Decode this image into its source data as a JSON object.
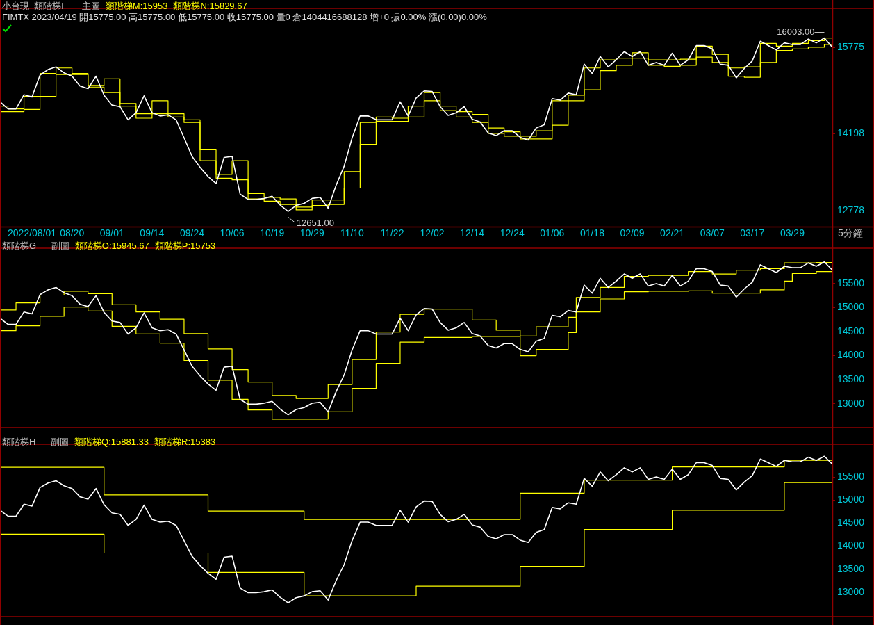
{
  "chart_data": [
    {
      "type": "line",
      "title": "小台現  類階梯F      主圖",
      "subtitle": "FIMTX 2023/04/19 開15775.00 高15775.00 低15775.00 收15775.00 量0 倉1404416688128 增+0 振0.00% 漲(0.00)0.00%",
      "xlabel": "5分鐘",
      "annotations": [
        "類階梯M:15953",
        "類階梯N:15829.67",
        "16003.00",
        "12651.00"
      ],
      "categories": [
        null,
        null,
        null,
        null,
        "2022/08/01",
        null,
        null,
        null,
        null,
        "08/20",
        null,
        null,
        null,
        null,
        "09/01",
        null,
        null,
        null,
        null,
        "09/14",
        null,
        null,
        null,
        null,
        "09/24",
        null,
        null,
        null,
        null,
        "10/06",
        null,
        null,
        null,
        null,
        "10/19",
        null,
        null,
        null,
        null,
        "10/29",
        null,
        null,
        null,
        null,
        "11/10",
        null,
        null,
        null,
        null,
        "11/22",
        null,
        null,
        null,
        null,
        "12/02",
        null,
        null,
        null,
        null,
        "12/14",
        null,
        null,
        null,
        null,
        "12/24",
        null,
        null,
        null,
        null,
        "01/06",
        null,
        null,
        null,
        null,
        "01/18",
        null,
        null,
        null,
        null,
        "02/09",
        null,
        null,
        null,
        null,
        "02/21",
        null,
        null,
        null,
        null,
        "03/07",
        null,
        null,
        null,
        null,
        "03/17",
        null,
        null,
        null,
        null,
        "03/29",
        null,
        null,
        null,
        null,
        null
      ],
      "ylim": [
        12480,
        16500
      ],
      "yticks": [
        12778,
        14198,
        15775
      ],
      "grid": false,
      "series": [
        {
          "type": "line",
          "color": "#ffffff",
          "values": [
            14780,
            14650,
            14650,
            14910,
            14870,
            15270,
            15370,
            15420,
            15310,
            15250,
            15070,
            15020,
            15250,
            14900,
            14720,
            14690,
            14450,
            14580,
            14890,
            14580,
            14520,
            14540,
            14450,
            14120,
            13780,
            13580,
            13410,
            13280,
            13760,
            13780,
            13090,
            12990,
            12990,
            13010,
            13050,
            12890,
            12770,
            12880,
            12920,
            13010,
            13030,
            12830,
            13250,
            13600,
            14120,
            14520,
            14520,
            14450,
            14450,
            14450,
            14780,
            14520,
            14850,
            14980,
            14970,
            14690,
            14530,
            14580,
            14690,
            14460,
            14410,
            14210,
            14160,
            14250,
            14250,
            14130,
            14080,
            14300,
            14360,
            14840,
            14810,
            14940,
            14910,
            15470,
            15300,
            15610,
            15420,
            15550,
            15700,
            15610,
            15700,
            15450,
            15500,
            15450,
            15670,
            15450,
            15550,
            15810,
            15810,
            15750,
            15470,
            15450,
            15220,
            15390,
            15530,
            15890,
            15810,
            15730,
            15860,
            15830,
            15830,
            15930,
            15860,
            15950,
            15780
          ]
        },
        {
          "type": "step",
          "color": "#ffff00",
          "values": [
            14700,
            14700,
            14650,
            14650,
            14880,
            14880,
            15300,
            15300,
            15400,
            15400,
            15280,
            15280,
            15080,
            15080,
            15200,
            15200,
            14750,
            14750,
            14560,
            14560,
            14800,
            14800,
            14560,
            14560,
            14450,
            14450,
            13900,
            13900,
            13450,
            13450,
            13700,
            13700,
            13100,
            13100,
            13030,
            13030,
            13000,
            13000,
            12850,
            12850,
            12980,
            12980,
            12980,
            12980,
            13500,
            13500,
            14400,
            14400,
            14500,
            14500,
            14480,
            14480,
            14700,
            14700,
            14950,
            14950,
            14700,
            14700,
            14600,
            14600,
            14550,
            14550,
            14300,
            14300,
            14230,
            14230,
            14150,
            14150,
            14250,
            14250,
            14800,
            14800,
            14900,
            14900,
            15400,
            15400,
            15550,
            15550,
            15580,
            15580,
            15680,
            15680,
            15550,
            15550,
            15550,
            15550,
            15560,
            15560,
            15800,
            15800,
            15650,
            15650,
            15400,
            15400,
            15420,
            15420,
            15850,
            15850,
            15800,
            15800,
            15850,
            15850,
            15900,
            15900,
            15950
          ]
        },
        {
          "type": "step",
          "color": "#ffff00",
          "values": [
            14600,
            14600,
            14600,
            14600,
            14640,
            14640,
            14880,
            14880,
            15280,
            15280,
            15300,
            15300,
            15050,
            15050,
            14950,
            14950,
            14700,
            14700,
            14480,
            14480,
            14560,
            14560,
            14500,
            14500,
            14400,
            14400,
            13700,
            13700,
            13380,
            13380,
            13350,
            13350,
            13000,
            13000,
            12960,
            12960,
            12900,
            12900,
            12800,
            12800,
            12880,
            12880,
            12900,
            12900,
            13200,
            13200,
            14000,
            14000,
            14420,
            14420,
            14420,
            14420,
            14500,
            14500,
            14800,
            14800,
            14620,
            14620,
            14500,
            14500,
            14400,
            14400,
            14200,
            14200,
            14150,
            14150,
            14100,
            14100,
            14100,
            14100,
            14350,
            14350,
            14800,
            14800,
            15000,
            15000,
            15350,
            15350,
            15450,
            15450,
            15580,
            15580,
            15450,
            15450,
            15430,
            15430,
            15450,
            15450,
            15600,
            15600,
            15500,
            15500,
            15250,
            15250,
            15230,
            15230,
            15500,
            15500,
            15720,
            15720,
            15750,
            15750,
            15780,
            15780,
            15830
          ]
        }
      ]
    },
    {
      "type": "line",
      "title": "類階梯G      副圖",
      "annotations": [
        "類階梯O:15945.67",
        "類階梯P:15753"
      ],
      "categories": [
        null,
        null,
        null,
        null,
        null,
        null,
        null,
        null,
        null,
        null,
        null,
        null,
        null,
        null,
        null,
        null,
        null,
        null,
        null,
        null,
        null,
        null,
        null,
        null,
        null,
        null,
        null,
        null,
        null,
        null,
        null,
        null,
        null,
        null,
        null,
        null,
        null,
        null,
        null,
        null,
        null,
        null,
        null,
        null,
        null,
        null,
        null,
        null,
        null,
        null,
        null,
        null,
        null,
        null,
        null,
        null,
        null,
        null,
        null,
        null,
        null,
        null,
        null,
        null,
        null,
        null,
        null,
        null,
        null,
        null,
        null,
        null,
        null,
        null,
        null,
        null,
        null,
        null,
        null,
        null,
        null,
        null,
        null,
        null,
        null,
        null,
        null,
        null,
        null,
        null,
        null,
        null,
        null,
        null,
        null,
        null,
        null,
        null,
        null,
        null,
        null,
        null,
        null,
        null,
        null
      ],
      "tick_labels": "y",
      "ylim": [
        12495,
        16245
      ],
      "yticks": [
        13000,
        13500,
        14000,
        14500,
        15000,
        15500
      ],
      "grid": false,
      "series": [
        {
          "type": "line",
          "color": "#ffffff",
          "values": [
            14780,
            14650,
            14650,
            14910,
            14870,
            15270,
            15370,
            15420,
            15310,
            15250,
            15070,
            15020,
            15250,
            14900,
            14720,
            14690,
            14450,
            14580,
            14890,
            14580,
            14520,
            14540,
            14450,
            14120,
            13780,
            13580,
            13410,
            13280,
            13760,
            13780,
            13090,
            12990,
            12990,
            13010,
            13050,
            12890,
            12770,
            12880,
            12920,
            13010,
            13030,
            12830,
            13250,
            13600,
            14120,
            14520,
            14520,
            14450,
            14450,
            14450,
            14780,
            14520,
            14850,
            14980,
            14970,
            14690,
            14530,
            14580,
            14690,
            14460,
            14410,
            14210,
            14160,
            14250,
            14250,
            14130,
            14080,
            14300,
            14360,
            14840,
            14810,
            14940,
            14910,
            15470,
            15300,
            15610,
            15420,
            15550,
            15700,
            15610,
            15700,
            15450,
            15500,
            15450,
            15670,
            15450,
            15550,
            15810,
            15810,
            15750,
            15470,
            15450,
            15220,
            15390,
            15530,
            15890,
            15810,
            15730,
            15860,
            15830,
            15830,
            15930,
            15860,
            15950,
            15780
          ]
        },
        {
          "type": "step",
          "color": "#ffff00",
          "values": [
            14950,
            14950,
            14950,
            15100,
            15100,
            15100,
            15260,
            15260,
            15260,
            15340,
            15340,
            15340,
            15290,
            15290,
            15290,
            15060,
            15060,
            15060,
            14910,
            14910,
            14910,
            14760,
            14760,
            14760,
            14460,
            14460,
            14460,
            14140,
            14140,
            14140,
            13710,
            13710,
            13450,
            13450,
            13450,
            13170,
            13170,
            13170,
            13110,
            13110,
            13110,
            13110,
            13400,
            13400,
            13400,
            13920,
            13920,
            13920,
            14490,
            14490,
            14490,
            14860,
            14860,
            14860,
            14970,
            14970,
            14970,
            14970,
            14970,
            14970,
            14740,
            14740,
            14740,
            14530,
            14530,
            14530,
            14410,
            14410,
            14600,
            14600,
            14600,
            14600,
            14800,
            15210,
            15210,
            15210,
            15420,
            15420,
            15420,
            15650,
            15650,
            15650,
            15670,
            15670,
            15670,
            15670,
            15670,
            15750,
            15750,
            15750,
            15700,
            15700,
            15700,
            15780,
            15780,
            15780,
            15810,
            15810,
            15810,
            15930,
            15930,
            15930,
            15930,
            15940,
            15940
          ]
        },
        {
          "type": "step",
          "color": "#ffff00",
          "values": [
            14520,
            14520,
            14520,
            14620,
            14620,
            14620,
            14820,
            14820,
            14820,
            15010,
            15010,
            15010,
            14930,
            14930,
            14930,
            14610,
            14610,
            14610,
            14450,
            14450,
            14450,
            14260,
            14260,
            14260,
            13900,
            13900,
            13900,
            13490,
            13490,
            13490,
            13090,
            13090,
            12870,
            12870,
            12870,
            12680,
            12680,
            12680,
            12680,
            12680,
            12680,
            12680,
            12830,
            12830,
            12830,
            13320,
            13320,
            13320,
            13840,
            13840,
            13840,
            14280,
            14280,
            14280,
            14380,
            14380,
            14380,
            14380,
            14380,
            14380,
            14400,
            14400,
            14400,
            14400,
            14400,
            14400,
            14000,
            14000,
            14130,
            14130,
            14130,
            14130,
            14480,
            14910,
            14910,
            14910,
            15180,
            15180,
            15180,
            15330,
            15330,
            15330,
            15340,
            15340,
            15340,
            15340,
            15340,
            15350,
            15350,
            15350,
            15300,
            15300,
            15300,
            15300,
            15300,
            15300,
            15370,
            15370,
            15370,
            15550,
            15710,
            15710,
            15710,
            15750,
            15750
          ]
        }
      ]
    },
    {
      "type": "line",
      "title": "類階梯H      副圖",
      "annotations": [
        "類階梯Q:15881.33",
        "類階梯R:15383"
      ],
      "categories": [
        null,
        null,
        null,
        null,
        null,
        null,
        null,
        null,
        null,
        null,
        null,
        null,
        null,
        null,
        null,
        null,
        null,
        null,
        null,
        null,
        null,
        null,
        null,
        null,
        null,
        null,
        null,
        null,
        null,
        null,
        null,
        null,
        null,
        null,
        null,
        null,
        null,
        null,
        null,
        null,
        null,
        null,
        null,
        null,
        null,
        null,
        null,
        null,
        null,
        null,
        null,
        null,
        null,
        null,
        null,
        null,
        null,
        null,
        null,
        null,
        null,
        null,
        null,
        null,
        null,
        null,
        null,
        null,
        null,
        null,
        null,
        null,
        null,
        null,
        null,
        null,
        null,
        null,
        null,
        null,
        null,
        null,
        null,
        null,
        null,
        null,
        null,
        null,
        null,
        null,
        null,
        null,
        null,
        null,
        null,
        null,
        null,
        null,
        null,
        null,
        null,
        null,
        null,
        null,
        null
      ],
      "tick_labels": "y",
      "ylim": [
        12460,
        16220
      ],
      "yticks": [
        13000,
        13500,
        14000,
        14500,
        15000,
        15500
      ],
      "grid": false,
      "series": [
        {
          "type": "line",
          "color": "#ffffff",
          "values": [
            14780,
            14650,
            14650,
            14910,
            14870,
            15270,
            15370,
            15420,
            15310,
            15250,
            15070,
            15020,
            15250,
            14900,
            14720,
            14690,
            14450,
            14580,
            14890,
            14580,
            14520,
            14540,
            14450,
            14120,
            13780,
            13580,
            13410,
            13280,
            13760,
            13780,
            13090,
            12990,
            12990,
            13010,
            13050,
            12890,
            12770,
            12880,
            12920,
            13010,
            13030,
            12830,
            13250,
            13600,
            14120,
            14520,
            14520,
            14450,
            14450,
            14450,
            14780,
            14520,
            14850,
            14980,
            14970,
            14690,
            14530,
            14580,
            14690,
            14460,
            14410,
            14210,
            14160,
            14250,
            14250,
            14130,
            14080,
            14300,
            14360,
            14840,
            14810,
            14940,
            14910,
            15470,
            15300,
            15610,
            15420,
            15550,
            15700,
            15610,
            15700,
            15450,
            15500,
            15450,
            15670,
            15450,
            15550,
            15810,
            15810,
            15750,
            15470,
            15450,
            15220,
            15390,
            15530,
            15890,
            15810,
            15730,
            15860,
            15830,
            15830,
            15930,
            15860,
            15950,
            15780
          ]
        },
        {
          "type": "step",
          "color": "#ffff00",
          "values": [
            15710,
            15710,
            15710,
            15710,
            15710,
            15710,
            15710,
            15710,
            15710,
            15710,
            15710,
            15710,
            15710,
            15710,
            15110,
            15110,
            15110,
            15110,
            15110,
            15110,
            15110,
            15110,
            15110,
            15110,
            15110,
            15110,
            15110,
            14760,
            14760,
            14760,
            14760,
            14760,
            14760,
            14760,
            14760,
            14760,
            14760,
            14760,
            14760,
            14580,
            14580,
            14580,
            14580,
            14580,
            14580,
            14580,
            14580,
            14580,
            14580,
            14580,
            14580,
            14580,
            14580,
            14580,
            14580,
            14580,
            14580,
            14580,
            14580,
            14580,
            14580,
            14580,
            14580,
            14580,
            14580,
            14580,
            15150,
            15150,
            15150,
            15150,
            15150,
            15150,
            15150,
            15150,
            15430,
            15430,
            15430,
            15430,
            15430,
            15430,
            15430,
            15430,
            15430,
            15430,
            15430,
            15720,
            15720,
            15720,
            15720,
            15720,
            15720,
            15720,
            15720,
            15720,
            15720,
            15720,
            15720,
            15720,
            15720,
            15860,
            15860,
            15860,
            15860,
            15860,
            15860
          ]
        },
        {
          "type": "step",
          "color": "#ffff00",
          "values": [
            14260,
            14260,
            14260,
            14260,
            14260,
            14260,
            14260,
            14260,
            14260,
            14260,
            14260,
            14260,
            14260,
            14260,
            13850,
            13850,
            13850,
            13850,
            13850,
            13850,
            13850,
            13850,
            13850,
            13850,
            13850,
            13850,
            13850,
            13430,
            13430,
            13430,
            13430,
            13430,
            13430,
            13430,
            13430,
            13430,
            13430,
            13430,
            13430,
            12920,
            12920,
            12920,
            12920,
            12920,
            12920,
            12920,
            12920,
            12920,
            12920,
            12920,
            12920,
            12920,
            12920,
            13130,
            13130,
            13130,
            13130,
            13130,
            13130,
            13130,
            13130,
            13130,
            13130,
            13130,
            13130,
            13130,
            13560,
            13560,
            13560,
            13560,
            13560,
            13560,
            13560,
            13560,
            14360,
            14360,
            14360,
            14360,
            14360,
            14360,
            14360,
            14360,
            14360,
            14360,
            14360,
            14780,
            14780,
            14780,
            14780,
            14780,
            14780,
            14780,
            14780,
            14780,
            14780,
            14780,
            14780,
            14780,
            14780,
            15380,
            15380,
            15380,
            15380,
            15380,
            15380
          ]
        }
      ]
    }
  ]
}
